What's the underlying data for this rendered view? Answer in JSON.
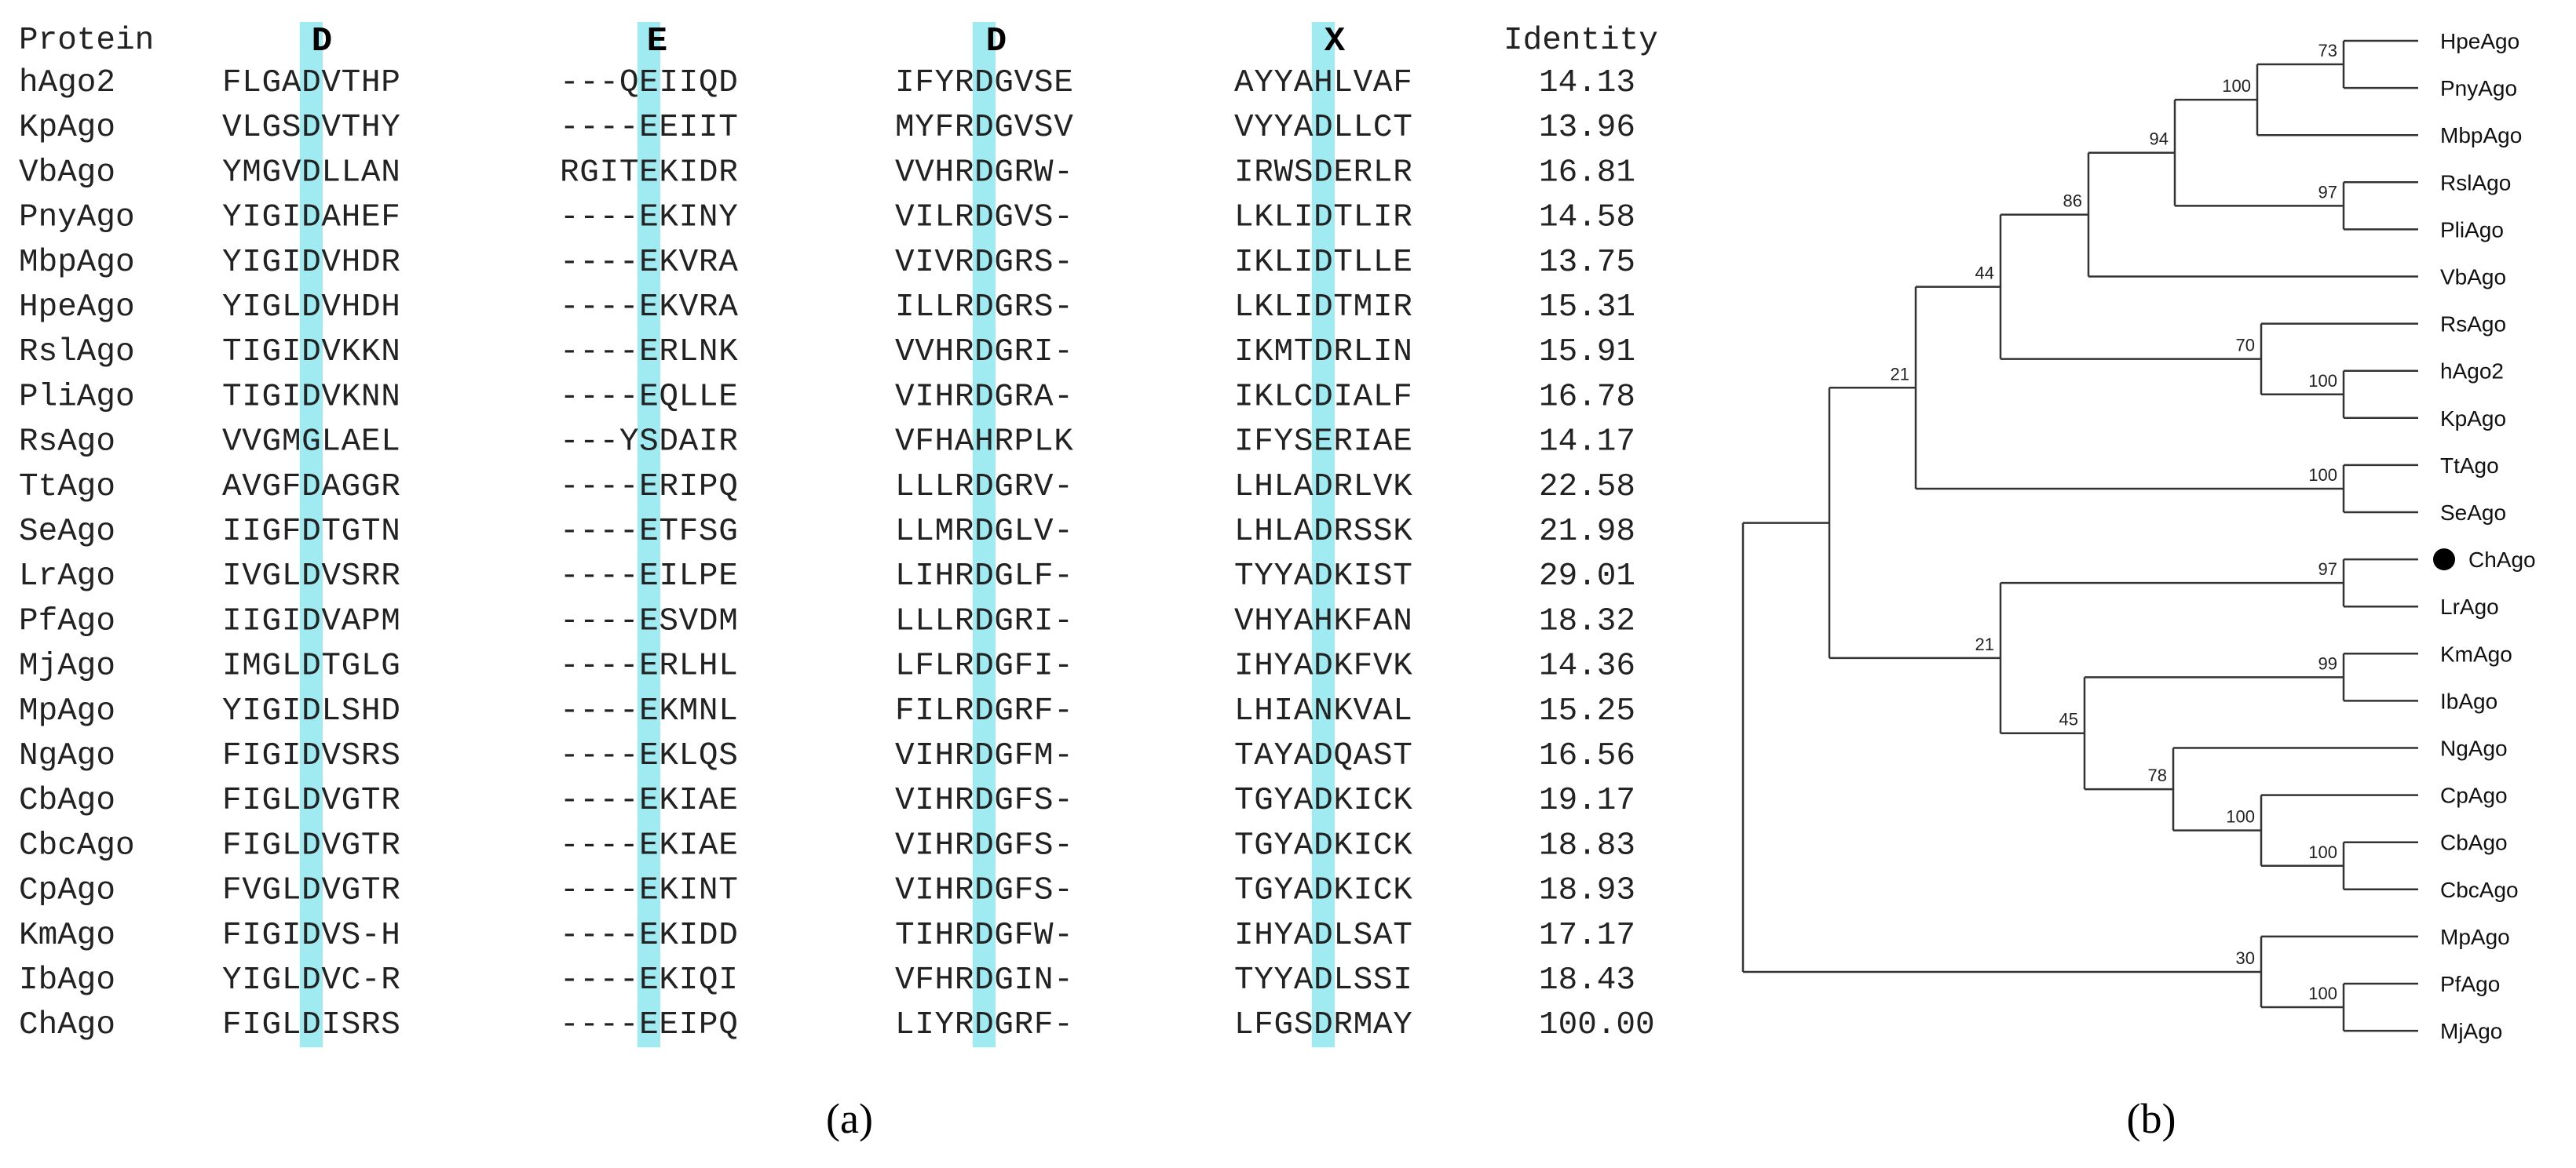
{
  "alignment": {
    "header": {
      "protein_label": "Protein",
      "motifs": [
        "D",
        "E",
        "D",
        "X"
      ],
      "identity_label": "Identity"
    },
    "rows": [
      {
        "name": "hAgo2",
        "s1": "FLGADVTHP",
        "s2": "---QEIIQD",
        "s3": "IFYRDGVSE",
        "s4": "AYYAHLVAF",
        "identity": "14.13"
      },
      {
        "name": "KpAgo",
        "s1": "VLGSDVTHY",
        "s2": "----EEIIT",
        "s3": "MYFRDGVSV",
        "s4": "VYYADLLCT",
        "identity": "13.96"
      },
      {
        "name": "VbAgo",
        "s1": "YMGVDLLAN",
        "s2": "RGITEKIDR",
        "s3": "VVHRDGRW-",
        "s4": "IRWSDERLR",
        "identity": "16.81"
      },
      {
        "name": "PnyAgo",
        "s1": "YIGIDAHEF",
        "s2": "----EKINY",
        "s3": "VILRDGVS-",
        "s4": "LKLIDTLIR",
        "identity": "14.58"
      },
      {
        "name": "MbpAgo",
        "s1": "YIGIDVHDR",
        "s2": "----EKVRA",
        "s3": "VIVRDGRS-",
        "s4": "IKLIDTLLE",
        "identity": "13.75"
      },
      {
        "name": "HpeAgo",
        "s1": "YIGLDVHDH",
        "s2": "----EKVRA",
        "s3": "ILLRDGRS-",
        "s4": "LKLIDTMIR",
        "identity": "15.31"
      },
      {
        "name": "RslAgo",
        "s1": "TIGIDVKKN",
        "s2": "----ERLNK",
        "s3": "VVHRDGRI-",
        "s4": "IKMTDRLIN",
        "identity": "15.91"
      },
      {
        "name": "PliAgo",
        "s1": "TIGIDVKNN",
        "s2": "----EQLLE",
        "s3": "VIHRDGRA-",
        "s4": "IKLCDIALF",
        "identity": "16.78"
      },
      {
        "name": "RsAgo",
        "s1": "VVGMGLAEL",
        "s2": "---YSDAIR",
        "s3": "VFHAHRPLK",
        "s4": "IFYSERIAE",
        "identity": "14.17"
      },
      {
        "name": "TtAgo",
        "s1": "AVGFDAGGR",
        "s2": "----ERIPQ",
        "s3": "LLLRDGRV-",
        "s4": "LHLADRLVK",
        "identity": "22.58"
      },
      {
        "name": "SeAgo",
        "s1": "IIGFDTGTN",
        "s2": "----ETFSG",
        "s3": "LLMRDGLV-",
        "s4": "LHLADRSSK",
        "identity": "21.98"
      },
      {
        "name": "LrAgo",
        "s1": "IVGLDVSRR",
        "s2": "----EILPE",
        "s3": "LIHRDGLF-",
        "s4": "TYYADKIST",
        "identity": "29.01"
      },
      {
        "name": "PfAgo",
        "s1": "IIGIDVAPM",
        "s2": "----ESVDM",
        "s3": "LLLRDGRI-",
        "s4": "VHYAHKFAN",
        "identity": "18.32"
      },
      {
        "name": "MjAgo",
        "s1": "IMGLDTGLG",
        "s2": "----ERLHL",
        "s3": "LFLRDGFI-",
        "s4": "IHYADKFVK",
        "identity": "14.36"
      },
      {
        "name": "MpAgo",
        "s1": "YIGIDLSHD",
        "s2": "----EKMNL",
        "s3": "FILRDGRF-",
        "s4": "LHIANKVAL",
        "identity": "15.25"
      },
      {
        "name": "NgAgo",
        "s1": "FIGIDVSRS",
        "s2": "----EKLQS",
        "s3": "VIHRDGFM-",
        "s4": "TAYADQAST",
        "identity": "16.56"
      },
      {
        "name": "CbAgo",
        "s1": "FIGLDVGTR",
        "s2": "----EKIAE",
        "s3": "VIHRDGFS-",
        "s4": "TGYADKICK",
        "identity": "19.17"
      },
      {
        "name": "CbcAgo",
        "s1": "FIGLDVGTR",
        "s2": "----EKIAE",
        "s3": "VIHRDGFS-",
        "s4": "TGYADKICK",
        "identity": "18.83"
      },
      {
        "name": "CpAgo",
        "s1": "FVGLDVGTR",
        "s2": "----EKINT",
        "s3": "VIHRDGFS-",
        "s4": "TGYADKICK",
        "identity": "18.93"
      },
      {
        "name": "KmAgo",
        "s1": "FIGIDVS-H",
        "s2": "----EKIDD",
        "s3": "TIHRDGFW-",
        "s4": "IHYADLSAT",
        "identity": "17.17"
      },
      {
        "name": "IbAgo",
        "s1": "YIGLDVC-R",
        "s2": "----EKIQI",
        "s3": "VFHRDGIN-",
        "s4": "TYYADLSSI",
        "identity": "18.43"
      },
      {
        "name": "ChAgo",
        "s1": "FIGLDISRS",
        "s2": "----EEIPQ",
        "s3": "LIYRDGRF-",
        "s4": "LFGSDRMAY",
        "identity": "100.00"
      }
    ],
    "highlight_color": "#8FE6EE",
    "caption": "(a)"
  },
  "tree": {
    "leaves": [
      "HpeAgo",
      "PnyAgo",
      "MbpAgo",
      "RslAgo",
      "PliAgo",
      "VbAgo",
      "RsAgo",
      "hAgo2",
      "KpAgo",
      "TtAgo",
      "SeAgo",
      "ChAgo",
      "LrAgo",
      "KmAgo",
      "IbAgo",
      "NgAgo",
      "CpAgo",
      "CbAgo",
      "CbcAgo",
      "MpAgo",
      "PfAgo",
      "MjAgo"
    ],
    "bootstrap": [
      "73",
      "100",
      "94",
      "97",
      "86",
      "44",
      "70",
      "100",
      "21",
      "100",
      "97",
      "21",
      "99",
      "45",
      "78",
      "100",
      "100",
      "30",
      "100"
    ],
    "marker": "●",
    "caption": "(b)"
  }
}
